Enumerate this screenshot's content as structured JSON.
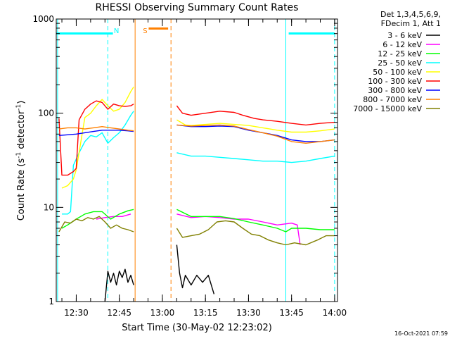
{
  "chart_data": {
    "type": "line",
    "title": "RHESSI Observing Summary Count Rates",
    "xlabel": "Start Time (30-May-02 12:23:02)",
    "ylabel_main": "Count Rate (s",
    "ylabel_exp1": "-1",
    "ylabel_mid": " detector",
    "ylabel_exp2": "-1",
    "ylabel_end": ")",
    "y_scale": "log",
    "ylim": [
      1,
      1000
    ],
    "xlim_minutes": [
      "12:23:02",
      "14:01:00"
    ],
    "y_ticks": [
      {
        "v": 1,
        "label": "1"
      },
      {
        "v": 10,
        "label": "10"
      },
      {
        "v": 100,
        "label": "100"
      },
      {
        "v": 1000,
        "label": "1000"
      }
    ],
    "x_ticks": [
      {
        "t": "12:30",
        "label": "12:30"
      },
      {
        "t": "12:45",
        "label": "12:45"
      },
      {
        "t": "13:00",
        "label": "13:00"
      },
      {
        "t": "13:15",
        "label": "13:15"
      },
      {
        "t": "13:30",
        "label": "13:30"
      },
      {
        "t": "13:45",
        "label": "13:45"
      },
      {
        "t": "14:00",
        "label": "14:00"
      }
    ],
    "legend_header": [
      "Det 1,3,4,5,6,9,",
      "FDecim 1, Att 1"
    ],
    "footer_date": "16-Oct-2021 07:59",
    "annotations": [
      {
        "label": "N",
        "color": "#00ffff",
        "time": "12:44"
      },
      {
        "label": "S",
        "color": "#ff8000",
        "time": "12:54"
      }
    ],
    "night_bars": [
      {
        "start": "12:23",
        "end": "12:44"
      },
      {
        "start": "13:44",
        "end": "14:00"
      }
    ],
    "saa_bar": {
      "start": "12:54",
      "end": "13:02"
    },
    "vlines": [
      {
        "time": "12:23:30",
        "color": "#00ffff",
        "style": "solid"
      },
      {
        "time": "12:41",
        "color": "#00ffff",
        "style": "dashed"
      },
      {
        "time": "12:50:30",
        "color": "#ff8000",
        "style": "solid"
      },
      {
        "time": "13:03",
        "color": "#ff8000",
        "style": "dashed"
      },
      {
        "time": "13:43",
        "color": "#00ffff",
        "style": "solid"
      },
      {
        "time": "14:00",
        "color": "#00ffff",
        "style": "dashed"
      }
    ],
    "series": [
      {
        "name": "3 - 6 keV",
        "color": "#000000",
        "segments": [
          [
            [
              "12:40",
              1
            ],
            [
              "12:41",
              2.1
            ],
            [
              "12:42",
              1.6
            ],
            [
              "12:43",
              2.0
            ],
            [
              "12:44",
              1.5
            ],
            [
              "12:45",
              2.1
            ],
            [
              "12:46",
              1.8
            ],
            [
              "12:47",
              2.2
            ],
            [
              "12:48",
              1.6
            ],
            [
              "12:49",
              1.9
            ],
            [
              "12:50",
              1.5
            ]
          ],
          [
            [
              "13:05",
              4.0
            ],
            [
              "13:06",
              2.0
            ],
            [
              "13:07",
              1.4
            ],
            [
              "13:08",
              1.9
            ],
            [
              "13:10",
              1.5
            ],
            [
              "13:12",
              1.9
            ],
            [
              "13:14",
              1.6
            ],
            [
              "13:16",
              1.9
            ],
            [
              "13:18",
              1.2
            ]
          ]
        ]
      },
      {
        "name": "6 - 12 keV",
        "color": "#ff00ff",
        "segments": [
          [
            [
              "12:37",
              7.5
            ],
            [
              "12:40",
              7.8
            ],
            [
              "12:43",
              8.0
            ],
            [
              "12:46",
              8.0
            ],
            [
              "12:49",
              8.5
            ]
          ],
          [
            [
              "13:05",
              8.5
            ],
            [
              "13:10",
              7.8
            ],
            [
              "13:15",
              8.0
            ],
            [
              "13:20",
              7.8
            ],
            [
              "13:25",
              7.5
            ],
            [
              "13:30",
              7.5
            ],
            [
              "13:35",
              7.0
            ],
            [
              "13:40",
              6.5
            ],
            [
              "13:45",
              6.8
            ],
            [
              "13:47",
              6.5
            ],
            [
              "13:48",
              4.0
            ]
          ]
        ]
      },
      {
        "name": "12 - 25 keV",
        "color": "#00ff00",
        "segments": [
          [
            [
              "12:25",
              6.0
            ],
            [
              "12:27",
              6.5
            ],
            [
              "12:30",
              7.5
            ],
            [
              "12:33",
              8.5
            ],
            [
              "12:36",
              9.0
            ],
            [
              "12:39",
              9.0
            ],
            [
              "12:42",
              7.5
            ],
            [
              "12:45",
              8.5
            ],
            [
              "12:48",
              9.2
            ],
            [
              "12:50",
              9.5
            ]
          ],
          [
            [
              "13:05",
              9.5
            ],
            [
              "13:10",
              8.0
            ],
            [
              "13:15",
              8.0
            ],
            [
              "13:20",
              8.0
            ],
            [
              "13:25",
              7.6
            ],
            [
              "13:30",
              7.0
            ],
            [
              "13:35",
              6.5
            ],
            [
              "13:40",
              6.0
            ],
            [
              "13:43",
              5.5
            ],
            [
              "13:45",
              6.0
            ],
            [
              "13:50",
              6.0
            ],
            [
              "13:55",
              5.8
            ],
            [
              "14:00",
              5.8
            ]
          ]
        ]
      },
      {
        "name": "25 - 50 keV",
        "color": "#00ffff",
        "segments": [
          [
            [
              "12:25",
              8.5
            ],
            [
              "12:27",
              8.5
            ],
            [
              "12:28",
              9.0
            ],
            [
              "12:29",
              28
            ],
            [
              "12:31",
              38
            ],
            [
              "12:33",
              50
            ],
            [
              "12:35",
              58
            ],
            [
              "12:37",
              56
            ],
            [
              "12:39",
              62
            ],
            [
              "12:41",
              48
            ],
            [
              "12:43",
              55
            ],
            [
              "12:45",
              62
            ],
            [
              "12:47",
              75
            ],
            [
              "12:49",
              95
            ],
            [
              "12:50",
              105
            ]
          ],
          [
            [
              "13:05",
              38
            ],
            [
              "13:10",
              35
            ],
            [
              "13:15",
              35
            ],
            [
              "13:20",
              34
            ],
            [
              "13:25",
              33
            ],
            [
              "13:30",
              32
            ],
            [
              "13:35",
              31
            ],
            [
              "13:40",
              31
            ],
            [
              "13:45",
              30
            ],
            [
              "13:50",
              31
            ],
            [
              "13:55",
              33
            ],
            [
              "14:00",
              35
            ]
          ]
        ]
      },
      {
        "name": "50 - 100 keV",
        "color": "#ffff00",
        "segments": [
          [
            [
              "12:25",
              16
            ],
            [
              "12:27",
              17
            ],
            [
              "12:29",
              20
            ],
            [
              "12:30",
              25
            ],
            [
              "12:33",
              90
            ],
            [
              "12:35",
              100
            ],
            [
              "12:37",
              120
            ],
            [
              "12:39",
              140
            ],
            [
              "12:41",
              120
            ],
            [
              "12:43",
              105
            ],
            [
              "12:45",
              110
            ],
            [
              "12:47",
              130
            ],
            [
              "12:49",
              170
            ],
            [
              "12:50",
              190
            ]
          ],
          [
            [
              "13:05",
              85
            ],
            [
              "13:08",
              75
            ],
            [
              "13:10",
              74
            ],
            [
              "13:15",
              76
            ],
            [
              "13:20",
              78
            ],
            [
              "13:25",
              76
            ],
            [
              "13:30",
              74
            ],
            [
              "13:35",
              70
            ],
            [
              "13:40",
              66
            ],
            [
              "13:45",
              63
            ],
            [
              "13:50",
              63
            ],
            [
              "13:55",
              65
            ],
            [
              "14:00",
              68
            ]
          ]
        ]
      },
      {
        "name": "100 - 300 keV",
        "color": "#ff0000",
        "segments": [
          [
            [
              "12:24",
              88
            ],
            [
              "12:25",
              22
            ],
            [
              "12:27",
              22
            ],
            [
              "12:29",
              24
            ],
            [
              "12:30",
              26
            ],
            [
              "12:31",
              85
            ],
            [
              "12:33",
              110
            ],
            [
              "12:35",
              125
            ],
            [
              "12:37",
              135
            ],
            [
              "12:39",
              130
            ],
            [
              "12:41",
              110
            ],
            [
              "12:43",
              125
            ],
            [
              "12:45",
              120
            ],
            [
              "12:47",
              118
            ],
            [
              "12:49",
              120
            ],
            [
              "12:50",
              125
            ]
          ],
          [
            [
              "13:05",
              120
            ],
            [
              "13:07",
              100
            ],
            [
              "13:10",
              95
            ],
            [
              "13:15",
              100
            ],
            [
              "13:20",
              105
            ],
            [
              "13:25",
              102
            ],
            [
              "13:28",
              95
            ],
            [
              "13:32",
              88
            ],
            [
              "13:35",
              85
            ],
            [
              "13:40",
              82
            ],
            [
              "13:45",
              78
            ],
            [
              "13:50",
              75
            ],
            [
              "13:55",
              78
            ],
            [
              "14:00",
              80
            ]
          ]
        ]
      },
      {
        "name": "300 - 800 keV",
        "color": "#0000ff",
        "segments": [
          [
            [
              "12:24",
              58
            ],
            [
              "12:27",
              59
            ],
            [
              "12:30",
              60
            ],
            [
              "12:33",
              62
            ],
            [
              "12:36",
              64
            ],
            [
              "12:39",
              66
            ],
            [
              "12:42",
              66
            ],
            [
              "12:45",
              66
            ],
            [
              "12:48",
              65
            ],
            [
              "12:50",
              64
            ]
          ],
          [
            [
              "13:05",
              75
            ],
            [
              "13:10",
              72
            ],
            [
              "13:15",
              72
            ],
            [
              "13:20",
              73
            ],
            [
              "13:25",
              72
            ],
            [
              "13:30",
              66
            ],
            [
              "13:35",
              62
            ],
            [
              "13:40",
              58
            ],
            [
              "13:45",
              52
            ],
            [
              "13:50",
              50
            ],
            [
              "13:55",
              50
            ],
            [
              "14:00",
              52
            ]
          ]
        ]
      },
      {
        "name": "800 - 7000 keV",
        "color": "#ff8000",
        "segments": [
          [
            [
              "12:24",
              68
            ],
            [
              "12:27",
              70
            ],
            [
              "12:30",
              70
            ],
            [
              "12:33",
              68
            ],
            [
              "12:36",
              70
            ],
            [
              "12:39",
              72
            ],
            [
              "12:42",
              70
            ],
            [
              "12:45",
              68
            ],
            [
              "12:48",
              66
            ],
            [
              "12:50",
              65
            ]
          ],
          [
            [
              "13:05",
              75
            ],
            [
              "13:10",
              73
            ],
            [
              "13:15",
              74
            ],
            [
              "13:20",
              75
            ],
            [
              "13:25",
              73
            ],
            [
              "13:30",
              67
            ],
            [
              "13:35",
              62
            ],
            [
              "13:40",
              57
            ],
            [
              "13:45",
              50
            ],
            [
              "13:50",
              48
            ],
            [
              "13:55",
              50
            ],
            [
              "14:00",
              52
            ]
          ]
        ]
      },
      {
        "name": "7000 - 15000 keV",
        "color": "#808000",
        "segments": [
          [
            [
              "12:24",
              5.5
            ],
            [
              "12:26",
              7.0
            ],
            [
              "12:28",
              6.8
            ],
            [
              "12:30",
              7.5
            ],
            [
              "12:32",
              7.2
            ],
            [
              "12:34",
              7.8
            ],
            [
              "12:36",
              7.5
            ],
            [
              "12:38",
              8.0
            ],
            [
              "12:40",
              7.0
            ],
            [
              "12:42",
              6.0
            ],
            [
              "12:44",
              6.5
            ],
            [
              "12:46",
              6.0
            ],
            [
              "12:48",
              5.8
            ],
            [
              "12:50",
              5.5
            ]
          ],
          [
            [
              "13:05",
              6.0
            ],
            [
              "13:07",
              4.8
            ],
            [
              "13:10",
              5.0
            ],
            [
              "13:13",
              5.2
            ],
            [
              "13:16",
              5.8
            ],
            [
              "13:19",
              7.0
            ],
            [
              "13:22",
              7.2
            ],
            [
              "13:25",
              7.0
            ],
            [
              "13:28",
              6.0
            ],
            [
              "13:31",
              5.2
            ],
            [
              "13:34",
              5.0
            ],
            [
              "13:37",
              4.5
            ],
            [
              "13:40",
              4.2
            ],
            [
              "13:43",
              4.0
            ],
            [
              "13:46",
              4.2
            ],
            [
              "13:50",
              4.0
            ],
            [
              "13:54",
              4.5
            ],
            [
              "13:57",
              5.0
            ],
            [
              "14:00",
              5.0
            ]
          ]
        ]
      }
    ]
  }
}
